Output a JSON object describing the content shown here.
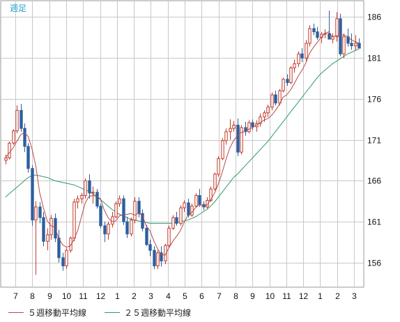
{
  "chart_data": {
    "type": "candlestick",
    "period_label": "週足",
    "y_ticks": [
      156,
      161,
      166,
      171,
      176,
      181,
      186
    ],
    "x_ticks": [
      "7",
      "8",
      "9",
      "10",
      "11",
      "12",
      "1",
      "2",
      "3",
      "4",
      "5",
      "6",
      "7",
      "8",
      "9",
      "10",
      "11",
      "12",
      "1",
      "2",
      "3"
    ],
    "ylim": [
      153,
      188
    ],
    "colors": {
      "up": "#c0392b",
      "down": "#2e5f9e",
      "ma5": "#b84848",
      "ma25": "#2a9a6a",
      "grid": "#c8c8c8",
      "frame": "#9a9a9a"
    },
    "candles": [
      [
        168.5,
        169.2,
        168.0,
        168.8
      ],
      [
        168.8,
        170.8,
        168.6,
        170.6
      ],
      [
        170.6,
        172.3,
        170.4,
        172.1
      ],
      [
        172.1,
        175.2,
        171.8,
        174.6
      ],
      [
        174.6,
        175.4,
        172.0,
        172.4
      ],
      [
        172.4,
        173.0,
        169.5,
        170.2
      ],
      [
        170.2,
        170.6,
        167.0,
        167.5
      ],
      [
        167.5,
        167.9,
        160.5,
        161.2
      ],
      [
        161.2,
        163.5,
        154.5,
        162.8
      ],
      [
        162.8,
        163.4,
        160.8,
        161.5
      ],
      [
        161.5,
        162.2,
        158.0,
        158.6
      ],
      [
        158.6,
        160.2,
        157.5,
        159.4
      ],
      [
        159.4,
        161.8,
        158.8,
        161.4
      ],
      [
        161.4,
        162.0,
        158.5,
        159.0
      ],
      [
        159.0,
        160.0,
        156.0,
        156.6
      ],
      [
        156.6,
        157.2,
        155.0,
        155.6
      ],
      [
        155.6,
        157.8,
        155.2,
        157.5
      ],
      [
        157.5,
        159.2,
        157.2,
        159.0
      ],
      [
        159.0,
        163.8,
        158.6,
        163.4
      ],
      [
        163.4,
        164.2,
        162.6,
        163.8
      ],
      [
        163.8,
        164.5,
        163.2,
        164.2
      ],
      [
        164.2,
        166.3,
        163.8,
        166.0
      ],
      [
        166.0,
        166.8,
        163.8,
        164.5
      ],
      [
        164.5,
        165.3,
        163.2,
        164.6
      ],
      [
        164.6,
        165.0,
        162.6,
        162.9
      ],
      [
        162.9,
        163.2,
        160.2,
        160.5
      ],
      [
        160.5,
        161.0,
        158.5,
        159.5
      ],
      [
        159.5,
        161.0,
        158.8,
        160.7
      ],
      [
        160.7,
        162.2,
        160.3,
        161.6
      ],
      [
        161.6,
        163.5,
        161.4,
        163.2
      ],
      [
        163.2,
        164.2,
        162.8,
        163.8
      ],
      [
        163.8,
        164.2,
        160.6,
        161.0
      ],
      [
        161.0,
        161.6,
        159.0,
        159.5
      ],
      [
        159.5,
        161.5,
        159.2,
        161.2
      ],
      [
        161.2,
        164.0,
        160.8,
        163.5
      ],
      [
        163.5,
        164.0,
        161.5,
        162.0
      ],
      [
        162.0,
        162.5,
        159.8,
        160.2
      ],
      [
        160.2,
        160.6,
        158.0,
        158.2
      ],
      [
        158.2,
        158.8,
        156.8,
        157.5
      ],
      [
        157.5,
        158.0,
        155.2,
        155.6
      ],
      [
        155.6,
        157.5,
        155.2,
        157.2
      ],
      [
        157.2,
        158.0,
        155.5,
        156.2
      ],
      [
        156.2,
        158.3,
        155.8,
        158.1
      ],
      [
        158.1,
        160.5,
        157.9,
        160.2
      ],
      [
        160.2,
        161.8,
        160.0,
        161.5
      ],
      [
        161.5,
        162.2,
        160.5,
        160.8
      ],
      [
        160.8,
        163.0,
        160.5,
        162.7
      ],
      [
        162.7,
        163.6,
        162.2,
        163.3
      ],
      [
        163.3,
        163.8,
        161.5,
        161.8
      ],
      [
        161.8,
        163.2,
        161.6,
        162.9
      ],
      [
        162.9,
        164.5,
        162.8,
        164.2
      ],
      [
        164.2,
        165.0,
        162.8,
        163.1
      ],
      [
        163.1,
        163.5,
        162.4,
        162.8
      ],
      [
        162.8,
        164.0,
        162.6,
        163.6
      ],
      [
        163.6,
        165.3,
        163.4,
        165.0
      ],
      [
        165.0,
        167.0,
        164.8,
        166.8
      ],
      [
        166.8,
        169.0,
        166.5,
        168.7
      ],
      [
        168.7,
        171.2,
        168.5,
        170.9
      ],
      [
        170.9,
        172.4,
        170.4,
        172.0
      ],
      [
        172.0,
        173.5,
        171.0,
        172.4
      ],
      [
        172.4,
        173.3,
        172.0,
        172.8
      ],
      [
        172.8,
        173.6,
        169.0,
        169.5
      ],
      [
        169.5,
        172.8,
        169.2,
        172.5
      ],
      [
        172.5,
        173.2,
        171.5,
        172.0
      ],
      [
        172.0,
        173.4,
        171.8,
        173.1
      ],
      [
        173.1,
        173.5,
        172.2,
        172.6
      ],
      [
        172.6,
        173.4,
        172.0,
        173.0
      ],
      [
        173.0,
        174.2,
        172.6,
        173.8
      ],
      [
        173.8,
        174.6,
        173.2,
        174.3
      ],
      [
        174.3,
        175.3,
        173.8,
        175.0
      ],
      [
        175.0,
        176.8,
        174.6,
        176.5
      ],
      [
        176.5,
        177.0,
        175.2,
        175.5
      ],
      [
        175.5,
        177.2,
        175.2,
        177.0
      ],
      [
        177.0,
        178.6,
        176.8,
        178.4
      ],
      [
        178.4,
        179.0,
        177.6,
        178.0
      ],
      [
        178.0,
        180.0,
        177.8,
        179.8
      ],
      [
        179.8,
        180.8,
        179.2,
        180.3
      ],
      [
        180.3,
        181.8,
        179.9,
        181.5
      ],
      [
        181.5,
        182.2,
        180.5,
        181.0
      ],
      [
        181.0,
        183.2,
        180.6,
        182.8
      ],
      [
        182.8,
        185.0,
        182.4,
        184.6
      ],
      [
        184.6,
        185.2,
        183.8,
        184.2
      ],
      [
        184.2,
        184.8,
        183.2,
        183.5
      ],
      [
        183.5,
        184.2,
        182.8,
        183.9
      ],
      [
        183.9,
        184.5,
        183.4,
        184.0
      ],
      [
        184.0,
        186.8,
        183.6,
        183.3
      ],
      [
        183.3,
        184.0,
        182.8,
        183.6
      ],
      [
        183.6,
        186.6,
        183.0,
        185.8
      ],
      [
        185.8,
        186.4,
        181.2,
        181.5
      ],
      [
        181.5,
        184.0,
        181.0,
        183.6
      ],
      [
        183.6,
        184.6,
        182.4,
        182.8
      ],
      [
        182.8,
        184.0,
        182.0,
        182.5
      ],
      [
        182.5,
        183.8,
        181.9,
        182.8
      ],
      [
        182.8,
        183.4,
        182.2,
        182.2
      ]
    ],
    "ma5": [
      168.8,
      169.4,
      170.0,
      170.8,
      171.6,
      171.9,
      171.4,
      169.9,
      167.8,
      164.6,
      162.7,
      161.1,
      160.5,
      160.3,
      159.0,
      158.2,
      157.9,
      158.0,
      158.8,
      159.9,
      161.6,
      163.3,
      164.1,
      164.2,
      164.1,
      163.8,
      162.4,
      161.5,
      161.0,
      161.1,
      161.7,
      161.9,
      161.9,
      162.0,
      161.8,
      162.0,
      161.8,
      160.5,
      159.9,
      158.7,
      157.7,
      157.0,
      156.9,
      157.8,
      158.6,
      159.2,
      159.9,
      160.9,
      161.8,
      162.1,
      162.7,
      163.1,
      162.9,
      163.0,
      163.7,
      164.5,
      165.6,
      167.0,
      168.6,
      170.0,
      170.9,
      171.5,
      171.9,
      172.0,
      172.3,
      172.5,
      172.8,
      173.1,
      173.4,
      173.6,
      174.0,
      174.6,
      175.3,
      176.2,
      176.5,
      177.1,
      177.9,
      178.8,
      179.5,
      180.4,
      181.6,
      182.3,
      182.9,
      183.5,
      184.0,
      184.2,
      183.6,
      183.7,
      183.8,
      183.8,
      183.6,
      183.2,
      183.0,
      182.8
    ],
    "ma25": [
      164.0,
      164.4,
      164.8,
      165.2,
      165.6,
      166.0,
      166.4,
      166.6,
      166.7,
      166.6,
      166.5,
      166.4,
      166.2,
      166.0,
      165.9,
      165.8,
      165.7,
      165.6,
      165.5,
      165.3,
      165.1,
      164.9,
      164.7,
      164.4,
      164.1,
      163.7,
      163.3,
      162.9,
      162.5,
      162.2,
      161.9,
      161.7,
      161.5,
      161.3,
      161.2,
      161.1,
      161.0,
      160.9,
      160.8,
      160.8,
      160.8,
      160.8,
      160.8,
      160.8,
      160.8,
      160.9,
      161.0,
      161.1,
      161.2,
      161.4,
      161.6,
      161.9,
      162.2,
      162.5,
      162.9,
      163.4,
      164.0,
      164.6,
      165.2,
      165.8,
      166.4,
      166.8,
      167.3,
      167.8,
      168.3,
      168.8,
      169.3,
      169.8,
      170.3,
      170.8,
      171.4,
      172.0,
      172.6,
      173.2,
      173.8,
      174.4,
      175.0,
      175.6,
      176.2,
      176.8,
      177.4,
      178.0,
      178.6,
      179.1,
      179.5,
      179.9,
      180.3,
      180.6,
      180.9,
      181.2,
      181.5,
      181.7,
      181.9,
      182.1
    ]
  },
  "legend": {
    "ma5_label": "５週移動平均線",
    "ma25_label": "２５週移動平均線"
  }
}
